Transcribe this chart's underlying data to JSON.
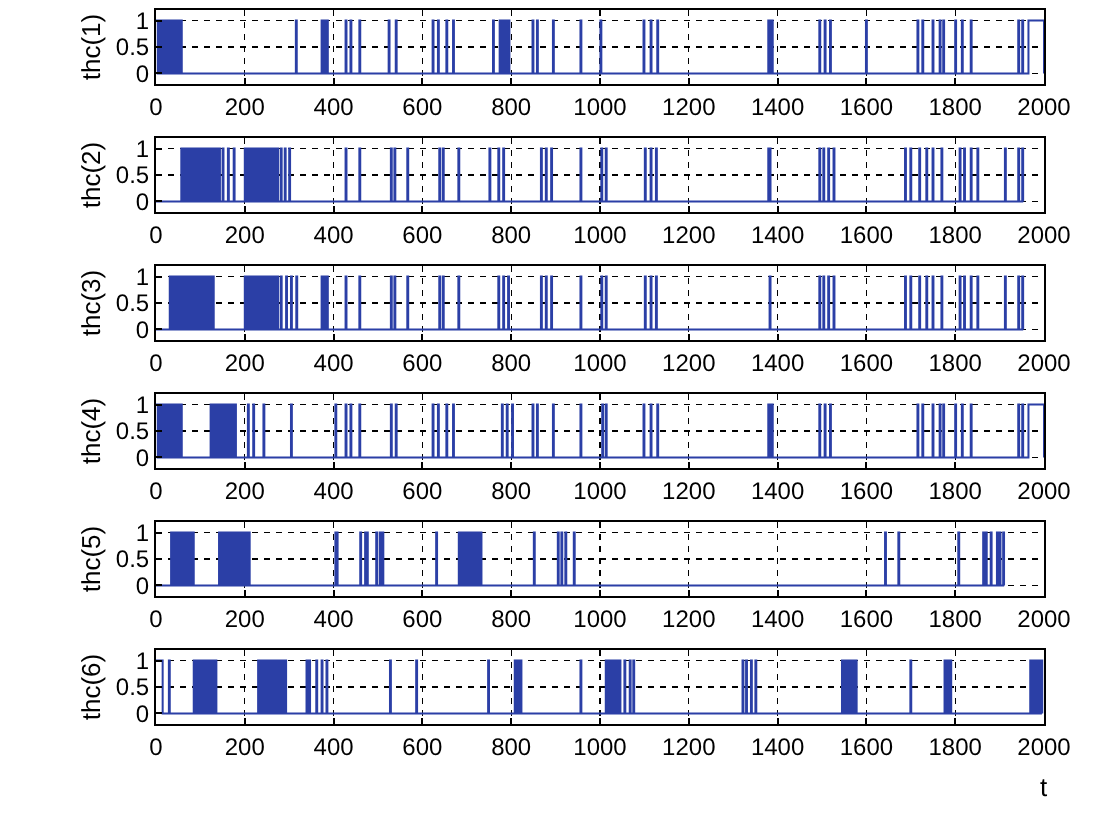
{
  "chart_data": [
    {
      "type": "step",
      "ylabel": "thc(1)",
      "xlim": [
        0,
        2000
      ],
      "ylim": [
        -0.2,
        1.2
      ],
      "xticks": [
        0,
        200,
        400,
        600,
        800,
        1000,
        1200,
        1400,
        1600,
        1800,
        2000
      ],
      "yticks": [
        0,
        0.5,
        1
      ],
      "grid": true,
      "line_style": "solid",
      "series": [
        {
          "color": "#2b3fa6",
          "x": [
            0,
            4,
            6,
            10,
            12,
            16,
            18,
            22,
            24,
            28,
            30,
            34,
            36,
            40,
            42,
            46,
            48,
            52,
            54,
            58,
            315,
            317,
            373,
            375,
            377,
            379,
            381,
            383,
            385,
            387,
            427,
            429,
            438,
            440,
            458,
            460,
            524,
            526,
            540,
            542,
            623,
            625,
            635,
            637,
            654,
            656,
            669,
            671,
            759,
            761,
            774,
            776,
            778,
            780,
            782,
            784,
            786,
            788,
            790,
            792,
            794,
            796,
            848,
            850,
            858,
            860,
            894,
            896,
            956,
            958,
            1001,
            1003,
            1098,
            1100,
            1114,
            1116,
            1129,
            1131,
            1379,
            1381,
            1383,
            1385,
            1387,
            1389,
            1494,
            1496,
            1506,
            1508,
            1518,
            1520,
            1599,
            1601,
            1715,
            1717,
            1726,
            1728,
            1749,
            1751,
            1765,
            1767,
            1773,
            1775,
            1800,
            1802,
            1815,
            1817,
            1835,
            1837,
            1942,
            1944,
            1951,
            1953,
            1965,
            2000
          ],
          "values": [
            1,
            0,
            1,
            0,
            1,
            0,
            1,
            0,
            1,
            0,
            1,
            0,
            1,
            0,
            1,
            0,
            1,
            0,
            1,
            0,
            1,
            0,
            1,
            0,
            1,
            0,
            1,
            0,
            1,
            0,
            1,
            0,
            1,
            0,
            1,
            0,
            1,
            0,
            1,
            0,
            1,
            0,
            1,
            0,
            1,
            0,
            1,
            0,
            1,
            0,
            1,
            0,
            1,
            0,
            1,
            0,
            1,
            0,
            1,
            0,
            1,
            0,
            1,
            0,
            1,
            0,
            1,
            0,
            1,
            0,
            1,
            0,
            1,
            0,
            1,
            0,
            1,
            0,
            1,
            0,
            1,
            0,
            1,
            0,
            1,
            0,
            1,
            0,
            1,
            0,
            1,
            0,
            1,
            0,
            1,
            0,
            1,
            0,
            1,
            0,
            1,
            0,
            1,
            0,
            1,
            0,
            1,
            0,
            1,
            0,
            1,
            0,
            1,
            0
          ]
        }
      ]
    },
    {
      "type": "step",
      "ylabel": "thc(2)",
      "xlim": [
        0,
        2000
      ],
      "ylim": [
        -0.2,
        1.2
      ],
      "xticks": [
        0,
        200,
        400,
        600,
        800,
        1000,
        1200,
        1400,
        1600,
        1800,
        2000
      ],
      "yticks": [
        0,
        0.5,
        1
      ],
      "grid": true,
      "line_style": "solid",
      "series": [
        {
          "color": "#2b3fa6",
          "x": [
            0,
            57,
            60,
            63,
            66,
            69,
            72,
            75,
            78,
            81,
            84,
            87,
            90,
            93,
            96,
            99,
            102,
            105,
            108,
            111,
            114,
            117,
            120,
            123,
            126,
            129,
            132,
            135,
            138,
            142,
            144,
            150,
            152,
            162,
            164,
            175,
            177,
            200,
            203,
            206,
            209,
            212,
            215,
            218,
            221,
            224,
            227,
            230,
            233,
            236,
            239,
            242,
            245,
            248,
            251,
            254,
            257,
            260,
            263,
            266,
            269,
            272,
            275,
            281,
            283,
            290,
            292,
            300,
            302,
            427,
            429,
            458,
            460,
            529,
            531,
            537,
            539,
            566,
            568,
            638,
            640,
            646,
            648,
            681,
            683,
            751,
            753,
            771,
            773,
            782,
            784,
            867,
            869,
            878,
            880,
            890,
            892,
            956,
            958,
            1003,
            1005,
            1013,
            1015,
            1101,
            1103,
            1114,
            1116,
            1126,
            1128,
            1379,
            1381,
            1382,
            1384,
            1494,
            1496,
            1503,
            1505,
            1514,
            1516,
            1526,
            1528,
            1687,
            1689,
            1699,
            1701,
            1719,
            1721,
            1735,
            1737,
            1749,
            1751,
            1769,
            1771,
            1810,
            1812,
            1820,
            1822,
            1835,
            1837,
            1850,
            1852,
            1912,
            1914,
            1942,
            1944,
            1951,
            1953
          ],
          "values": [
            0,
            1,
            0,
            1,
            0,
            1,
            0,
            1,
            0,
            1,
            0,
            1,
            0,
            1,
            0,
            1,
            0,
            1,
            0,
            1,
            0,
            1,
            0,
            1,
            0,
            1,
            0,
            1,
            0,
            1,
            0,
            1,
            0,
            1,
            0,
            1,
            0,
            1,
            0,
            1,
            0,
            1,
            0,
            1,
            0,
            1,
            0,
            1,
            0,
            1,
            0,
            1,
            0,
            1,
            0,
            1,
            0,
            1,
            0,
            1,
            0,
            1,
            0,
            1,
            0,
            1,
            0,
            1,
            0,
            1,
            0,
            1,
            0,
            1,
            0,
            1,
            0,
            1,
            0,
            1,
            0,
            1,
            0,
            1,
            0,
            1,
            0,
            1,
            0,
            1,
            0,
            1,
            0,
            1,
            0,
            1,
            0,
            1,
            0,
            1,
            0,
            1,
            0,
            1,
            0,
            1,
            0,
            1,
            0,
            1,
            0,
            1,
            0,
            1,
            0,
            1,
            0,
            1,
            0,
            1,
            0,
            1,
            0,
            1,
            0,
            1,
            0,
            1,
            0,
            1,
            0,
            1,
            0,
            1,
            0,
            1,
            0,
            1,
            0,
            1,
            0,
            1,
            0,
            1,
            0,
            1,
            0
          ]
        }
      ]
    },
    {
      "type": "step",
      "ylabel": "thc(3)",
      "xlim": [
        0,
        2000
      ],
      "ylim": [
        -0.2,
        1.2
      ],
      "xticks": [
        0,
        200,
        400,
        600,
        800,
        1000,
        1200,
        1400,
        1600,
        1800,
        2000
      ],
      "yticks": [
        0,
        0.5,
        1
      ],
      "grid": true,
      "line_style": "solid",
      "series": [
        {
          "color": "#2b3fa6",
          "x": [
            0,
            31,
            34,
            37,
            40,
            43,
            46,
            49,
            52,
            55,
            58,
            61,
            64,
            67,
            70,
            73,
            76,
            79,
            82,
            85,
            88,
            91,
            94,
            97,
            100,
            103,
            106,
            109,
            112,
            115,
            118,
            121,
            124,
            127,
            130,
            200,
            203,
            206,
            209,
            212,
            215,
            218,
            221,
            224,
            227,
            230,
            233,
            236,
            239,
            242,
            245,
            248,
            251,
            254,
            257,
            260,
            263,
            266,
            269,
            272,
            275,
            281,
            283,
            293,
            295,
            304,
            306,
            316,
            318,
            373,
            375,
            377,
            379,
            381,
            383,
            385,
            387,
            427,
            429,
            458,
            460,
            529,
            531,
            537,
            539,
            566,
            568,
            638,
            640,
            646,
            648,
            681,
            683,
            771,
            773,
            782,
            784,
            793,
            795,
            867,
            869,
            878,
            880,
            890,
            892,
            956,
            958,
            1003,
            1005,
            1013,
            1015,
            1101,
            1103,
            1114,
            1116,
            1126,
            1128,
            1382,
            1384,
            1494,
            1496,
            1503,
            1505,
            1514,
            1516,
            1526,
            1528,
            1687,
            1689,
            1699,
            1701,
            1719,
            1721,
            1735,
            1737,
            1749,
            1751,
            1769,
            1771,
            1810,
            1812,
            1820,
            1822,
            1835,
            1837,
            1850,
            1852,
            1912,
            1914,
            1942,
            1944,
            1951,
            1953
          ],
          "values": [
            0,
            1,
            0,
            1,
            0,
            1,
            0,
            1,
            0,
            1,
            0,
            1,
            0,
            1,
            0,
            1,
            0,
            1,
            0,
            1,
            0,
            1,
            0,
            1,
            0,
            1,
            0,
            1,
            0,
            1,
            0,
            1,
            0,
            1,
            0,
            1,
            0,
            1,
            0,
            1,
            0,
            1,
            0,
            1,
            0,
            1,
            0,
            1,
            0,
            1,
            0,
            1,
            0,
            1,
            0,
            1,
            0,
            1,
            0,
            1,
            0,
            1,
            0,
            1,
            0,
            1,
            0,
            1,
            0,
            1,
            0,
            1,
            0,
            1,
            0,
            1,
            0,
            1,
            0,
            1,
            0,
            1,
            0,
            1,
            0,
            1,
            0,
            1,
            0,
            1,
            0,
            1,
            0,
            1,
            0,
            1,
            0,
            1,
            0,
            1,
            0,
            1,
            0,
            1,
            0,
            1,
            0,
            1,
            0,
            1,
            0,
            1,
            0,
            1,
            0,
            1,
            0,
            1,
            0,
            1,
            0,
            1,
            0,
            1,
            0,
            1,
            0,
            1,
            0,
            1,
            0,
            1,
            0,
            1,
            0,
            1,
            0,
            1,
            0,
            1,
            0,
            1,
            0,
            1,
            0,
            1,
            0,
            1,
            0,
            1,
            0,
            1,
            0
          ]
        }
      ]
    },
    {
      "type": "step",
      "ylabel": "thc(4)",
      "xlim": [
        0,
        2000
      ],
      "ylim": [
        -0.2,
        1.2
      ],
      "xticks": [
        0,
        200,
        400,
        600,
        800,
        1000,
        1200,
        1400,
        1600,
        1800,
        2000
      ],
      "yticks": [
        0,
        0.5,
        1
      ],
      "grid": true,
      "line_style": "solid",
      "series": [
        {
          "color": "#2b3fa6",
          "x": [
            0,
            4,
            6,
            10,
            12,
            16,
            18,
            22,
            24,
            28,
            30,
            34,
            36,
            40,
            42,
            46,
            48,
            52,
            54,
            58,
            123,
            126,
            129,
            132,
            135,
            138,
            141,
            144,
            147,
            150,
            153,
            156,
            159,
            162,
            165,
            168,
            171,
            174,
            177,
            180,
            207,
            209,
            219,
            221,
            242,
            244,
            304,
            306,
            404,
            406,
            427,
            429,
            438,
            440,
            458,
            460,
            529,
            531,
            540,
            542,
            623,
            625,
            635,
            637,
            654,
            656,
            669,
            671,
            779,
            781,
            790,
            792,
            802,
            804,
            848,
            850,
            858,
            860,
            894,
            896,
            956,
            958,
            1005,
            1007,
            1013,
            1015,
            1098,
            1100,
            1114,
            1116,
            1129,
            1131,
            1379,
            1381,
            1383,
            1385,
            1387,
            1389,
            1494,
            1496,
            1506,
            1508,
            1518,
            1520,
            1715,
            1717,
            1726,
            1728,
            1749,
            1751,
            1765,
            1767,
            1773,
            1775,
            1800,
            1802,
            1815,
            1817,
            1835,
            1837,
            1942,
            1944,
            1951,
            1953,
            1965,
            2000
          ],
          "values": [
            1,
            0,
            1,
            0,
            1,
            0,
            1,
            0,
            1,
            0,
            1,
            0,
            1,
            0,
            1,
            0,
            1,
            0,
            1,
            0,
            1,
            0,
            1,
            0,
            1,
            0,
            1,
            0,
            1,
            0,
            1,
            0,
            1,
            0,
            1,
            0,
            1,
            0,
            1,
            0,
            1,
            0,
            1,
            0,
            1,
            0,
            1,
            0,
            1,
            0,
            1,
            0,
            1,
            0,
            1,
            0,
            1,
            0,
            1,
            0,
            1,
            0,
            1,
            0,
            1,
            0,
            1,
            0,
            1,
            0,
            1,
            0,
            1,
            0,
            1,
            0,
            1,
            0,
            1,
            0,
            1,
            0,
            1,
            0,
            1,
            0,
            1,
            0,
            1,
            0,
            1,
            0,
            1,
            0,
            1,
            0,
            1,
            0,
            1,
            0,
            1,
            0,
            1,
            0,
            1,
            0,
            1,
            0,
            1,
            0,
            1,
            0,
            1,
            0,
            1,
            0,
            1,
            0,
            1,
            0,
            1,
            0,
            1,
            0,
            1,
            0
          ]
        }
      ]
    },
    {
      "type": "step",
      "ylabel": "thc(5)",
      "xlim": [
        0,
        2000
      ],
      "ylim": [
        -0.2,
        1.2
      ],
      "xticks": [
        0,
        200,
        400,
        600,
        800,
        1000,
        1200,
        1400,
        1600,
        1800,
        2000
      ],
      "yticks": [
        0,
        0.5,
        1
      ],
      "grid": true,
      "line_style": "solid",
      "series": [
        {
          "color": "#2b3fa6",
          "x": [
            0,
            34,
            37,
            40,
            43,
            46,
            49,
            52,
            55,
            58,
            61,
            64,
            67,
            70,
            73,
            76,
            79,
            82,
            85,
            142,
            145,
            148,
            151,
            154,
            157,
            160,
            163,
            166,
            169,
            172,
            175,
            178,
            181,
            184,
            187,
            190,
            193,
            196,
            199,
            202,
            205,
            208,
            211,
            404,
            405,
            407,
            409,
            460,
            462,
            471,
            473,
            475,
            477,
            496,
            498,
            504,
            506,
            510,
            512,
            631,
            633,
            682,
            685,
            688,
            691,
            694,
            697,
            700,
            703,
            706,
            709,
            712,
            715,
            718,
            721,
            724,
            727,
            730,
            733,
            851,
            853,
            905,
            907,
            913,
            915,
            922,
            924,
            941,
            943,
            1642,
            1644,
            1672,
            1674,
            1807,
            1809,
            1863,
            1865,
            1869,
            1871,
            1880,
            1882,
            1894,
            1896,
            1900,
            1902,
            1908,
            1910
          ],
          "values": [
            0,
            1,
            0,
            1,
            0,
            1,
            0,
            1,
            0,
            1,
            0,
            1,
            0,
            1,
            0,
            1,
            0,
            1,
            0,
            1,
            0,
            1,
            0,
            1,
            0,
            1,
            0,
            1,
            0,
            1,
            0,
            1,
            0,
            1,
            0,
            1,
            0,
            1,
            0,
            1,
            0,
            1,
            0,
            1,
            0,
            1,
            0,
            1,
            0,
            1,
            0,
            1,
            0,
            1,
            0,
            1,
            0,
            1,
            0,
            1,
            0,
            1,
            0,
            1,
            0,
            1,
            0,
            1,
            0,
            1,
            0,
            1,
            0,
            1,
            0,
            1,
            0,
            1,
            0,
            1,
            0,
            1,
            0,
            1,
            0,
            1,
            0,
            1,
            0,
            1,
            0,
            1,
            0,
            1,
            0,
            1,
            0,
            1,
            0,
            1,
            0,
            1,
            0,
            1,
            0,
            1,
            0
          ]
        }
      ]
    },
    {
      "type": "step",
      "ylabel": "thc(6)",
      "xlabel": "t",
      "xlim": [
        0,
        2000
      ],
      "ylim": [
        -0.2,
        1.2
      ],
      "xticks": [
        0,
        200,
        400,
        600,
        800,
        1000,
        1200,
        1400,
        1600,
        1800,
        2000
      ],
      "yticks": [
        0,
        0.5,
        1
      ],
      "grid": true,
      "line_style": "solid",
      "series": [
        {
          "color": "#2b3fa6",
          "x": [
            0,
            15,
            29,
            31,
            85,
            88,
            91,
            94,
            97,
            100,
            103,
            106,
            109,
            112,
            115,
            118,
            121,
            124,
            127,
            130,
            133,
            136,
            230,
            233,
            236,
            239,
            242,
            245,
            248,
            251,
            254,
            257,
            260,
            263,
            266,
            269,
            272,
            275,
            278,
            281,
            284,
            287,
            290,
            293,
            339,
            341,
            345,
            347,
            361,
            363,
            373,
            375,
            384,
            386,
            527,
            529,
            586,
            588,
            748,
            750,
            808,
            811,
            814,
            817,
            820,
            823,
            956,
            958,
            1013,
            1016,
            1019,
            1022,
            1025,
            1028,
            1031,
            1034,
            1037,
            1040,
            1043,
            1046,
            1055,
            1057,
            1067,
            1069,
            1075,
            1077,
            1321,
            1323,
            1329,
            1331,
            1340,
            1342,
            1350,
            1352,
            1545,
            1548,
            1551,
            1554,
            1557,
            1560,
            1563,
            1566,
            1569,
            1572,
            1575,
            1578,
            1699,
            1701,
            1776,
            1779,
            1782,
            1785,
            1788,
            1791,
            1969,
            1972,
            1975,
            1978,
            1981,
            1984,
            1987,
            1990,
            1993,
            1996
          ],
          "values": [
            1,
            0,
            1,
            0,
            1,
            0,
            1,
            0,
            1,
            0,
            1,
            0,
            1,
            0,
            1,
            0,
            1,
            0,
            1,
            0,
            1,
            0,
            1,
            0,
            1,
            0,
            1,
            0,
            1,
            0,
            1,
            0,
            1,
            0,
            1,
            0,
            1,
            0,
            1,
            0,
            1,
            0,
            1,
            0,
            1,
            0,
            1,
            0,
            1,
            0,
            1,
            0,
            1,
            0,
            1,
            0,
            1,
            0,
            1,
            0,
            1,
            0,
            1,
            0,
            1,
            0,
            1,
            0,
            1,
            0,
            1,
            0,
            1,
            0,
            1,
            0,
            1,
            0,
            1,
            0,
            1,
            0,
            1,
            0,
            1,
            0,
            1,
            0,
            1,
            0,
            1,
            0,
            1,
            0,
            1,
            0,
            1,
            0,
            1,
            0,
            1,
            0,
            1,
            0,
            1,
            0,
            1,
            0,
            1,
            0,
            1,
            0,
            1,
            0,
            1,
            0,
            1,
            0,
            1,
            0,
            1,
            0,
            1,
            0
          ]
        }
      ]
    }
  ]
}
